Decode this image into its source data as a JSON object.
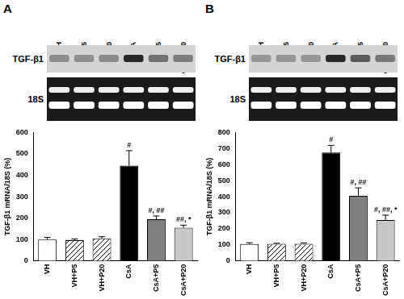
{
  "chart_data": [
    {
      "type": "bar",
      "panel": "A",
      "blot_labels": [
        "TGF-β1",
        "18S"
      ],
      "categories": [
        "VH",
        "VH+P5",
        "VH+P20",
        "CsA",
        "CsA+P5",
        "CsA+P20"
      ],
      "values": [
        100,
        97,
        105,
        445,
        195,
        155
      ],
      "errors": [
        10,
        6,
        8,
        70,
        15,
        12
      ],
      "annotations": [
        null,
        null,
        null,
        "#",
        "#, ##",
        "##, *"
      ],
      "colors": [
        "#ffffff",
        "#ffffff",
        "#ffffff",
        "#000000",
        "#808080",
        "#c8c8c8"
      ],
      "y_label": "TGF-β1 mRNA/18S (%)",
      "ylim": [
        0,
        600
      ],
      "yticks": [
        0,
        100,
        200,
        300,
        400,
        500,
        600
      ],
      "grid": false
    },
    {
      "type": "bar",
      "panel": "B",
      "blot_labels": [
        "TGF-β1",
        "18S"
      ],
      "categories": [
        "VH",
        "VH+P5",
        "VH+P20",
        "CsA",
        "CsA+P5",
        "CsA+P20"
      ],
      "values": [
        105,
        107,
        107,
        675,
        405,
        255
      ],
      "errors": [
        8,
        3,
        5,
        45,
        50,
        30
      ],
      "annotations": [
        null,
        null,
        null,
        "#",
        "#, ##",
        "#, ##, *"
      ],
      "colors": [
        "#ffffff",
        "#ffffff",
        "#ffffff",
        "#000000",
        "#808080",
        "#c8c8c8"
      ],
      "y_label": "TGF-β1 mRNA/18S (%)",
      "ylim": [
        0,
        800
      ],
      "yticks": [
        0,
        100,
        200,
        300,
        400,
        500,
        600,
        700,
        800
      ],
      "grid": false
    }
  ]
}
